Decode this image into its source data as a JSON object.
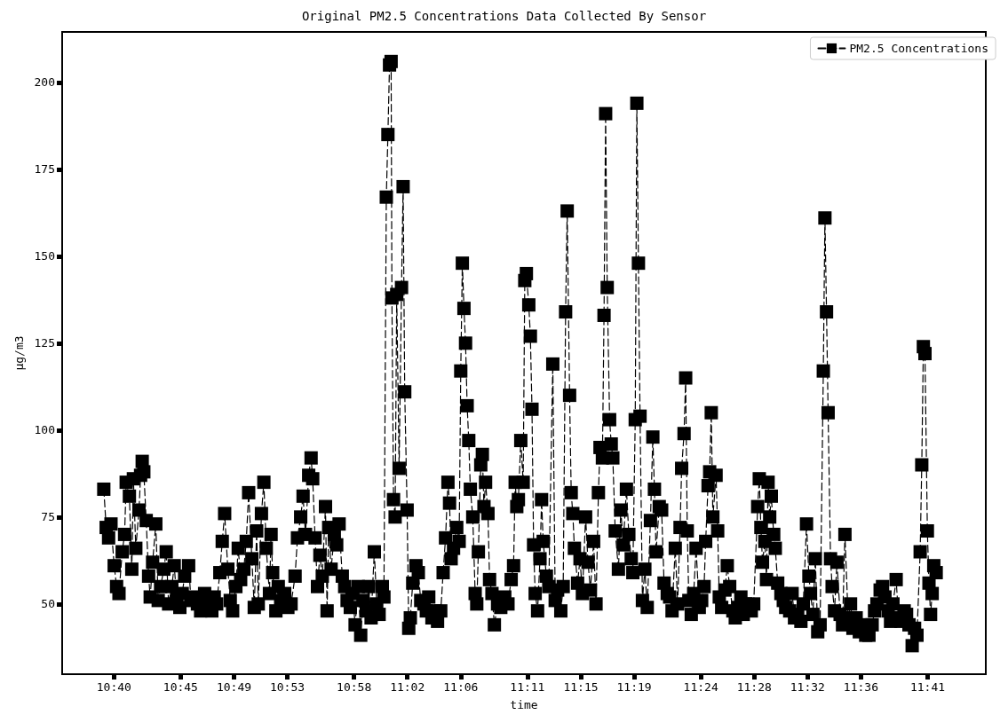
{
  "chart_data": {
    "type": "line",
    "title": "Original PM2.5 Concentrations Data Collected By Sensor",
    "xlabel": "time",
    "ylabel": "μg/m3",
    "legend": "top right",
    "marker": "square",
    "line_style": "dashed",
    "grid": false,
    "xlim": [
      10.602,
      11.756
    ],
    "ylim": [
      29.8,
      214.5
    ],
    "xticks": [
      {
        "value": 10.6667,
        "label": "10:40"
      },
      {
        "value": 10.75,
        "label": "10:45"
      },
      {
        "value": 10.8167,
        "label": "10:49"
      },
      {
        "value": 10.8833,
        "label": "10:53"
      },
      {
        "value": 10.9667,
        "label": "10:58"
      },
      {
        "value": 11.0333,
        "label": "11:02"
      },
      {
        "value": 11.1,
        "label": "11:06"
      },
      {
        "value": 11.1833,
        "label": "11:11"
      },
      {
        "value": 11.25,
        "label": "11:15"
      },
      {
        "value": 11.3167,
        "label": "11:19"
      },
      {
        "value": 11.4,
        "label": "11:24"
      },
      {
        "value": 11.4667,
        "label": "11:28"
      },
      {
        "value": 11.5333,
        "label": "11:32"
      },
      {
        "value": 11.6,
        "label": "11:36"
      },
      {
        "value": 11.6833,
        "label": "11:41"
      }
    ],
    "yticks": [
      50,
      75,
      100,
      125,
      150,
      175,
      200
    ],
    "x": [
      10.654,
      10.657,
      10.66,
      10.663,
      10.667,
      10.67,
      10.673,
      10.677,
      10.68,
      10.682,
      10.686,
      10.689,
      10.691,
      10.694,
      10.698,
      10.7,
      10.702,
      10.704,
      10.707,
      10.71,
      10.712,
      10.715,
      10.719,
      10.722,
      10.725,
      10.729,
      10.732,
      10.735,
      10.739,
      10.742,
      10.745,
      10.749,
      10.752,
      10.755,
      10.76,
      10.763,
      10.766,
      10.771,
      10.775,
      10.78,
      10.784,
      10.789,
      10.792,
      10.795,
      10.799,
      10.802,
      10.805,
      10.809,
      10.812,
      10.815,
      10.819,
      10.822,
      10.825,
      10.829,
      10.832,
      10.835,
      10.839,
      10.842,
      10.845,
      10.847,
      10.851,
      10.854,
      10.857,
      10.861,
      10.863,
      10.865,
      10.869,
      10.872,
      10.875,
      10.88,
      10.884,
      10.888,
      10.893,
      10.896,
      10.9,
      10.903,
      10.906,
      10.91,
      10.913,
      10.915,
      10.918,
      10.921,
      10.924,
      10.927,
      10.931,
      10.933,
      10.935,
      10.938,
      10.942,
      10.945,
      10.948,
      10.952,
      10.955,
      10.958,
      10.962,
      10.965,
      10.968,
      10.972,
      10.975,
      10.978,
      10.982,
      10.985,
      10.988,
      10.992,
      10.995,
      10.998,
      11.002,
      11.004,
      11.007,
      11.009,
      11.011,
      11.013,
      11.014,
      11.016,
      11.018,
      11.02,
      11.023,
      11.026,
      11.028,
      11.03,
      11.033,
      11.035,
      11.037,
      11.04,
      11.044,
      11.047,
      11.05,
      11.054,
      11.057,
      11.06,
      11.064,
      11.068,
      11.071,
      11.075,
      11.078,
      11.081,
      11.084,
      11.086,
      11.088,
      11.091,
      11.095,
      11.098,
      11.1,
      11.102,
      11.104,
      11.106,
      11.108,
      11.11,
      11.112,
      11.115,
      11.118,
      11.12,
      11.122,
      11.125,
      11.127,
      11.129,
      11.131,
      11.134,
      11.136,
      11.139,
      11.142,
      11.146,
      11.15,
      11.155,
      11.159,
      11.163,
      11.166,
      11.168,
      11.17,
      11.172,
      11.175,
      11.178,
      11.18,
      11.182,
      11.185,
      11.187,
      11.189,
      11.191,
      11.193,
      11.196,
      11.199,
      11.201,
      11.203,
      11.207,
      11.21,
      11.215,
      11.218,
      11.221,
      11.225,
      11.228,
      11.231,
      11.233,
      11.236,
      11.238,
      11.24,
      11.242,
      11.246,
      11.249,
      11.252,
      11.256,
      11.259,
      11.262,
      11.266,
      11.269,
      11.272,
      11.274,
      11.277,
      11.279,
      11.281,
      11.283,
      11.286,
      11.288,
      11.29,
      11.293,
      11.297,
      11.3,
      11.303,
      11.307,
      11.31,
      11.313,
      11.315,
      11.318,
      11.32,
      11.322,
      11.324,
      11.327,
      11.33,
      11.333,
      11.337,
      11.34,
      11.342,
      11.344,
      11.348,
      11.351,
      11.354,
      11.358,
      11.361,
      11.364,
      11.368,
      11.371,
      11.374,
      11.376,
      11.379,
      11.381,
      11.383,
      11.385,
      11.388,
      11.391,
      11.394,
      11.398,
      11.401,
      11.404,
      11.406,
      11.409,
      11.411,
      11.413,
      11.415,
      11.419,
      11.421,
      11.423,
      11.426,
      11.43,
      11.433,
      11.436,
      11.44,
      11.443,
      11.446,
      11.45,
      11.453,
      11.456,
      11.46,
      11.463,
      11.466,
      11.471,
      11.473,
      11.475,
      11.477,
      11.48,
      11.482,
      11.484,
      11.486,
      11.488,
      11.491,
      11.493,
      11.496,
      11.5,
      11.503,
      11.506,
      11.511,
      11.514,
      11.517,
      11.521,
      11.525,
      11.528,
      11.532,
      11.535,
      11.537,
      11.54,
      11.543,
      11.546,
      11.549,
      11.553,
      11.555,
      11.557,
      11.559,
      11.562,
      11.564,
      11.567,
      11.57,
      11.574,
      11.577,
      11.58,
      11.584,
      11.587,
      11.59,
      11.594,
      11.598,
      11.603,
      11.606,
      11.61,
      11.614,
      11.617,
      11.62,
      11.624,
      11.627,
      11.63,
      11.634,
      11.637,
      11.64,
      11.644,
      11.647,
      11.65,
      11.654,
      11.657,
      11.66,
      11.664,
      11.667,
      11.67,
      11.674,
      11.676,
      11.678,
      11.68,
      11.683,
      11.685,
      11.687,
      11.689,
      11.691,
      11.694
    ],
    "series": [
      {
        "name": "PM2.5 Concentrations",
        "color": "#000000",
        "values": [
          83,
          72,
          69,
          73,
          61,
          55,
          53,
          65,
          70,
          85,
          81,
          60,
          86,
          66,
          77,
          87,
          91,
          88,
          74,
          58,
          52,
          62,
          73,
          51,
          55,
          60,
          65,
          50,
          55,
          61,
          52,
          49,
          53,
          58,
          61,
          51,
          52,
          50,
          48,
          53,
          51,
          48,
          52,
          50,
          59,
          68,
          76,
          60,
          51,
          48,
          55,
          66,
          57,
          60,
          68,
          82,
          63,
          49,
          71,
          50,
          76,
          85,
          66,
          53,
          70,
          59,
          48,
          55,
          51,
          53,
          49,
          50,
          58,
          69,
          75,
          81,
          70,
          87,
          92,
          86,
          69,
          55,
          64,
          58,
          78,
          48,
          72,
          60,
          70,
          67,
          73,
          58,
          55,
          51,
          49,
          53,
          44,
          55,
          41,
          51,
          48,
          55,
          46,
          65,
          50,
          47,
          55,
          52,
          167,
          185,
          205,
          206,
          138,
          80,
          75,
          139,
          89,
          141,
          170,
          111,
          77,
          43,
          46,
          56,
          61,
          59,
          51,
          50,
          48,
          52,
          46,
          48,
          45,
          48,
          59,
          69,
          85,
          79,
          63,
          66,
          72,
          68,
          117,
          148,
          135,
          125,
          107,
          97,
          83,
          75,
          53,
          50,
          65,
          90,
          93,
          78,
          85,
          76,
          57,
          53,
          44,
          50,
          49,
          52,
          50,
          57,
          61,
          85,
          78,
          80,
          97,
          85,
          143,
          145,
          136,
          127,
          106,
          67,
          53,
          48,
          63,
          80,
          68,
          58,
          55,
          119,
          51,
          54,
          48,
          55,
          134,
          163,
          110,
          82,
          76,
          66,
          56,
          63,
          53,
          75,
          62,
          54,
          68,
          50,
          82,
          95,
          92,
          133,
          191,
          141,
          103,
          96,
          92,
          71,
          60,
          77,
          67,
          83,
          70,
          63,
          59,
          103,
          194,
          148,
          104,
          51,
          60,
          49,
          74,
          98,
          83,
          65,
          78,
          77,
          56,
          53,
          52,
          48,
          66,
          50,
          72,
          89,
          99,
          115,
          71,
          51,
          47,
          53,
          66,
          49,
          51,
          55,
          68,
          84,
          88,
          105,
          75,
          87,
          71,
          52,
          49,
          54,
          61,
          55,
          48,
          46,
          49,
          52,
          47,
          50,
          49,
          48,
          50,
          78,
          86,
          72,
          62,
          68,
          57,
          85,
          75,
          81,
          70,
          66,
          56,
          53,
          51,
          49,
          48,
          53,
          46,
          47,
          45,
          50,
          73,
          58,
          53,
          47,
          63,
          42,
          44,
          117,
          161,
          134,
          105,
          63,
          55,
          48,
          62,
          47,
          44,
          70,
          46,
          50,
          43,
          46,
          42,
          44,
          41,
          41,
          44,
          48,
          50,
          54,
          55,
          52,
          48,
          45,
          50,
          57,
          46,
          45,
          48,
          47,
          44,
          38,
          43,
          41,
          65,
          90,
          124,
          122,
          71,
          56,
          47,
          53,
          61,
          59
        ]
      }
    ]
  }
}
